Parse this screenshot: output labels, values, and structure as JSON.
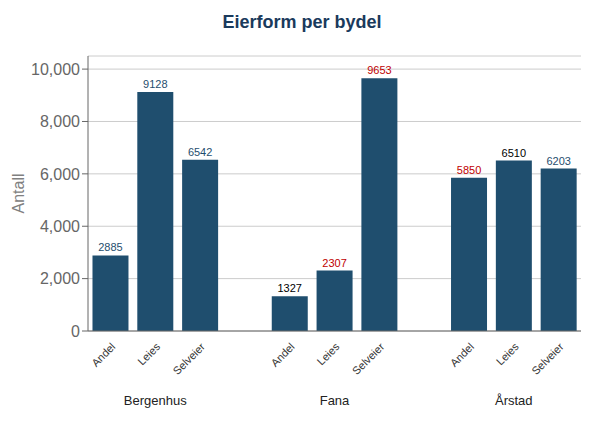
{
  "chart_data": {
    "type": "bar",
    "title": "Eierform per bydel",
    "ylabel": "Antall",
    "categories": [
      "Andel",
      "Leies",
      "Selveier"
    ],
    "groups": [
      {
        "name": "Bergenhus",
        "values": [
          2885,
          9128,
          6542
        ],
        "label_colors": [
          "#1f4e6e",
          "#1f4e6e",
          "#1f4e6e"
        ]
      },
      {
        "name": "Fana",
        "values": [
          1327,
          2307,
          9653
        ],
        "label_colors": [
          "#c00000",
          "#c00000",
          "#c00000"
        ]
      },
      {
        "name": "Årstad",
        "values": [
          5850,
          6510,
          6203
        ],
        "label_colors": [
          "#1f4e6e",
          "#1f4e6e",
          "#1f4e6e"
        ]
      }
    ],
    "color": "#1f4e6e",
    "data_labels": true,
    "grid": true,
    "ylim": [
      0,
      10500
    ],
    "yticks": [
      0,
      {
        "value": 2000,
        "label": "2,000"
      },
      {
        "value": 4000,
        "label": "4,000"
      },
      {
        "value": 6000,
        "label": "6,000"
      },
      {
        "value": 8000,
        "label": "8,000"
      },
      {
        "value": 10000,
        "label": "10,000"
      }
    ]
  }
}
